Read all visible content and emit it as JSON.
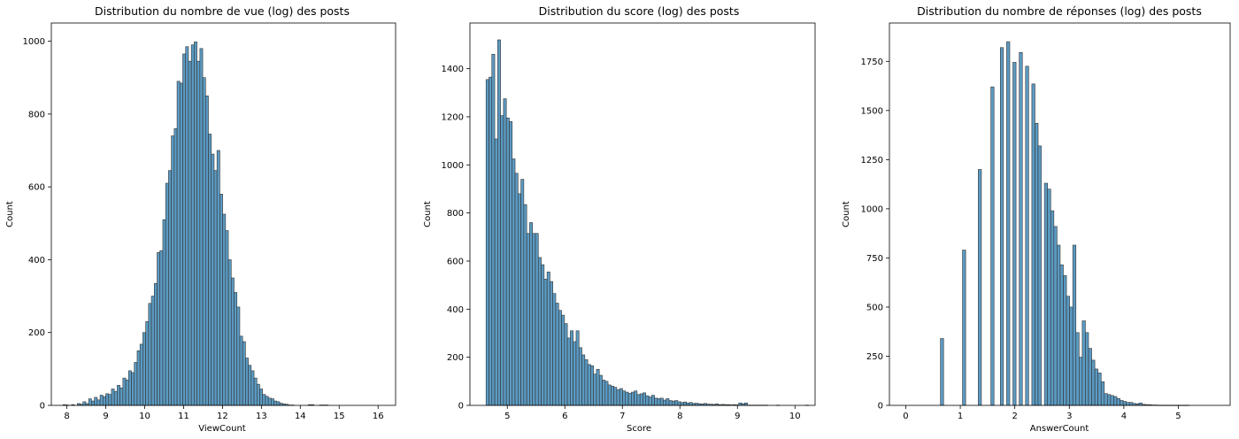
{
  "chart_data": [
    {
      "type": "histogram",
      "title": "Distribution du nombre de vue (log) des posts",
      "xlabel": "ViewCount",
      "ylabel": "Count",
      "xlim": [
        7.6,
        16.45
      ],
      "ylim": [
        0,
        1050
      ],
      "xticks": [
        8,
        9,
        10,
        11,
        12,
        13,
        14,
        15,
        16
      ],
      "yticks": [
        0,
        200,
        400,
        600,
        800,
        1000
      ],
      "bin_start": 7.9,
      "bin_width": 0.0733,
      "values": [
        2,
        1,
        0,
        2,
        0,
        5,
        3,
        10,
        5,
        18,
        12,
        22,
        15,
        28,
        24,
        32,
        30,
        45,
        38,
        55,
        48,
        75,
        70,
        95,
        90,
        118,
        150,
        168,
        200,
        230,
        280,
        300,
        335,
        420,
        425,
        510,
        610,
        645,
        740,
        760,
        890,
        885,
        965,
        985,
        945,
        990,
        998,
        945,
        980,
        900,
        850,
        745,
        690,
        645,
        700,
        580,
        525,
        480,
        400,
        350,
        310,
        270,
        190,
        175,
        130,
        110,
        95,
        75,
        58,
        45,
        30,
        25,
        20,
        18,
        12,
        10,
        6,
        4,
        3,
        1,
        1,
        0,
        0,
        0,
        0,
        0,
        2,
        2,
        0,
        0,
        1,
        1,
        1,
        0
      ]
    },
    {
      "type": "histogram",
      "title": "Distribution du score (log) des posts",
      "xlabel": "Score",
      "ylabel": "Count",
      "xlim": [
        4.35,
        10.35
      ],
      "ylim": [
        0,
        1590
      ],
      "xticks": [
        5,
        6,
        7,
        8,
        9,
        10
      ],
      "yticks": [
        0,
        200,
        400,
        600,
        800,
        1000,
        1200,
        1400
      ],
      "bin_start": 4.63,
      "bin_width": 0.0505,
      "values": [
        1355,
        1365,
        1460,
        1108,
        1520,
        1205,
        1275,
        1195,
        1180,
        1025,
        965,
        880,
        940,
        835,
        715,
        760,
        715,
        715,
        615,
        585,
        525,
        555,
        515,
        465,
        425,
        395,
        375,
        340,
        280,
        310,
        265,
        310,
        240,
        210,
        190,
        170,
        165,
        130,
        150,
        125,
        105,
        100,
        85,
        80,
        75,
        65,
        70,
        60,
        55,
        50,
        55,
        60,
        45,
        48,
        52,
        40,
        35,
        42,
        30,
        28,
        30,
        22,
        28,
        20,
        18,
        20,
        15,
        12,
        14,
        10,
        12,
        8,
        9,
        7,
        6,
        8,
        5,
        5,
        4,
        6,
        3,
        4,
        3,
        3,
        2,
        3,
        2,
        10,
        7,
        10,
        1,
        1,
        1,
        1,
        1,
        1,
        1,
        0,
        0,
        0,
        1,
        0,
        0,
        0,
        0,
        0,
        0,
        0,
        0,
        0,
        1
      ]
    },
    {
      "type": "histogram",
      "title": "Distribution du nombre de réponses (log) des posts",
      "xlabel": "AnswerCount",
      "ylabel": "Count",
      "xlim": [
        -0.3,
        5.95
      ],
      "ylim": [
        0,
        1945
      ],
      "xticks": [
        0,
        1,
        2,
        3,
        4,
        5
      ],
      "yticks": [
        0,
        250,
        500,
        750,
        1000,
        1250,
        1500,
        1750
      ],
      "bin_start": 0,
      "bin_width": 0.0578,
      "values": [
        0,
        0,
        0,
        0,
        0,
        0,
        0,
        0,
        0,
        0,
        0,
        340,
        0,
        0,
        0,
        0,
        0,
        0,
        790,
        0,
        0,
        0,
        0,
        1200,
        0,
        0,
        0,
        1620,
        0,
        0,
        1820,
        0,
        1850,
        0,
        1745,
        0,
        1795,
        0,
        1725,
        0,
        1635,
        1435,
        1320,
        0,
        1130,
        1100,
        990,
        910,
        815,
        715,
        660,
        555,
        500,
        815,
        370,
        245,
        430,
        370,
        290,
        230,
        185,
        165,
        120,
        60,
        55,
        50,
        45,
        35,
        25,
        20,
        15,
        15,
        10,
        8,
        12,
        5,
        4,
        3,
        2,
        2,
        1,
        1,
        1,
        1,
        1,
        1,
        1,
        1,
        1,
        1,
        0
      ]
    }
  ],
  "colors": {
    "bar_fill": "#5b9ac2",
    "bar_edge": "#333333",
    "axes": "#000000"
  }
}
